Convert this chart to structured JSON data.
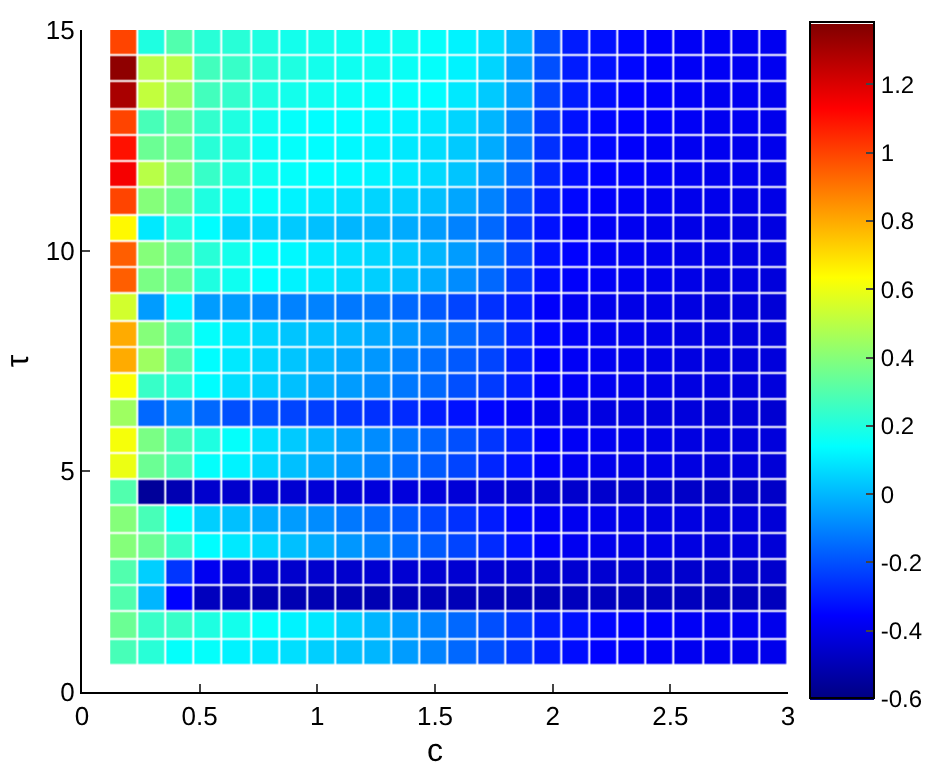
{
  "chart_data": {
    "type": "heatmap",
    "xlabel": "c",
    "ylabel": "τ",
    "x": [
      0.18,
      0.3,
      0.42,
      0.54,
      0.66,
      0.78,
      0.9,
      1.02,
      1.14,
      1.26,
      1.38,
      1.5,
      1.62,
      1.74,
      1.86,
      1.98,
      2.1,
      2.22,
      2.34,
      2.46,
      2.58,
      2.7,
      2.82,
      2.94
    ],
    "y": [
      14.7,
      14.1,
      13.5,
      12.9,
      12.3,
      11.7,
      11.1,
      10.5,
      9.9,
      9.3,
      8.7,
      8.1,
      7.5,
      6.9,
      6.3,
      5.7,
      5.1,
      4.5,
      3.9,
      3.3,
      2.7,
      2.1,
      1.5,
      0.9
    ],
    "xlim": [
      0,
      3
    ],
    "xticks": [
      0,
      0.5,
      1,
      1.5,
      2,
      2.5,
      3
    ],
    "ylim": [
      0,
      15
    ],
    "yticks": [
      0,
      5,
      10,
      15
    ],
    "clim": [
      -0.6,
      1.38
    ],
    "cticks": [
      -0.6,
      -0.4,
      -0.2,
      0,
      0.2,
      0.4,
      0.6,
      0.8,
      1,
      1.2
    ],
    "cells": [
      [
        1.0,
        0.2,
        0.3,
        0.22,
        0.22,
        0.2,
        0.18,
        0.18,
        0.17,
        0.16,
        0.17,
        0.15,
        0.12,
        0.08,
        0.0,
        -0.2,
        -0.3,
        -0.32,
        -0.34,
        -0.36,
        -0.37,
        -0.37,
        -0.38,
        -0.38
      ],
      [
        1.35,
        0.5,
        0.5,
        0.27,
        0.25,
        0.22,
        0.2,
        0.18,
        0.17,
        0.17,
        0.16,
        0.15,
        0.12,
        0.06,
        -0.05,
        -0.2,
        -0.3,
        -0.32,
        -0.34,
        -0.36,
        -0.37,
        -0.37,
        -0.38,
        -0.38
      ],
      [
        1.3,
        0.52,
        0.45,
        0.27,
        0.24,
        0.2,
        0.18,
        0.17,
        0.16,
        0.15,
        0.15,
        0.14,
        0.1,
        0.04,
        -0.05,
        -0.22,
        -0.3,
        -0.33,
        -0.35,
        -0.36,
        -0.37,
        -0.38,
        -0.38,
        -0.39
      ],
      [
        1.0,
        0.28,
        0.35,
        0.24,
        0.2,
        0.17,
        0.15,
        0.14,
        0.14,
        0.13,
        0.12,
        0.1,
        0.06,
        0.0,
        -0.1,
        -0.25,
        -0.32,
        -0.34,
        -0.35,
        -0.36,
        -0.37,
        -0.38,
        -0.38,
        -0.39
      ],
      [
        1.1,
        0.35,
        0.36,
        0.22,
        0.2,
        0.16,
        0.15,
        0.14,
        0.13,
        0.12,
        0.1,
        0.08,
        0.04,
        -0.02,
        -0.12,
        -0.26,
        -0.32,
        -0.34,
        -0.36,
        -0.37,
        -0.38,
        -0.38,
        -0.39,
        -0.39
      ],
      [
        1.15,
        0.5,
        0.4,
        0.25,
        0.2,
        0.17,
        0.15,
        0.14,
        0.13,
        0.12,
        0.1,
        0.07,
        0.03,
        -0.05,
        -0.15,
        -0.28,
        -0.33,
        -0.35,
        -0.36,
        -0.37,
        -0.38,
        -0.39,
        -0.39,
        -0.4
      ],
      [
        1.0,
        0.4,
        0.35,
        0.2,
        0.17,
        0.15,
        0.12,
        0.1,
        0.08,
        0.06,
        0.05,
        0.02,
        -0.03,
        -0.1,
        -0.2,
        -0.3,
        -0.34,
        -0.36,
        -0.37,
        -0.38,
        -0.39,
        -0.39,
        -0.4,
        -0.4
      ],
      [
        0.65,
        0.1,
        0.2,
        0.14,
        0.06,
        0.06,
        0.04,
        0.02,
        0.0,
        0.0,
        -0.02,
        -0.05,
        -0.1,
        -0.15,
        -0.25,
        -0.32,
        -0.36,
        -0.37,
        -0.38,
        -0.39,
        -0.4,
        -0.4,
        -0.41,
        -0.41
      ],
      [
        0.95,
        0.4,
        0.35,
        0.22,
        0.18,
        0.15,
        0.13,
        0.1,
        0.08,
        0.06,
        0.04,
        0.0,
        -0.05,
        -0.12,
        -0.22,
        -0.32,
        -0.35,
        -0.37,
        -0.38,
        -0.39,
        -0.4,
        -0.4,
        -0.41,
        -0.41
      ],
      [
        0.95,
        0.38,
        0.35,
        0.2,
        0.17,
        0.14,
        0.12,
        0.1,
        0.07,
        0.05,
        0.02,
        -0.02,
        -0.08,
        -0.15,
        -0.25,
        -0.33,
        -0.36,
        -0.37,
        -0.38,
        -0.39,
        -0.4,
        -0.41,
        -0.41,
        -0.42
      ],
      [
        0.55,
        -0.05,
        0.12,
        -0.05,
        -0.05,
        -0.08,
        -0.1,
        -0.1,
        -0.12,
        -0.12,
        -0.15,
        -0.18,
        -0.22,
        -0.26,
        -0.3,
        -0.36,
        -0.38,
        -0.39,
        -0.4,
        -0.4,
        -0.41,
        -0.42,
        -0.42,
        -0.43
      ],
      [
        0.8,
        0.4,
        0.3,
        0.15,
        0.1,
        0.06,
        0.03,
        0.02,
        0.0,
        -0.03,
        -0.06,
        -0.1,
        -0.15,
        -0.2,
        -0.28,
        -0.34,
        -0.37,
        -0.38,
        -0.39,
        -0.4,
        -0.41,
        -0.41,
        -0.42,
        -0.42
      ],
      [
        0.8,
        0.45,
        0.3,
        0.14,
        0.1,
        0.06,
        0.03,
        0.0,
        -0.03,
        -0.06,
        -0.1,
        -0.14,
        -0.18,
        -0.22,
        -0.3,
        -0.35,
        -0.37,
        -0.38,
        -0.39,
        -0.4,
        -0.41,
        -0.41,
        -0.42,
        -0.42
      ],
      [
        0.63,
        0.25,
        0.22,
        0.14,
        0.08,
        0.05,
        0.02,
        -0.02,
        -0.05,
        -0.08,
        -0.12,
        -0.15,
        -0.2,
        -0.24,
        -0.3,
        -0.35,
        -0.37,
        -0.38,
        -0.39,
        -0.4,
        -0.41,
        -0.41,
        -0.42,
        -0.42
      ],
      [
        0.45,
        -0.15,
        -0.1,
        -0.15,
        -0.2,
        -0.2,
        -0.22,
        -0.23,
        -0.25,
        -0.26,
        -0.27,
        -0.3,
        -0.32,
        -0.34,
        -0.37,
        -0.39,
        -0.4,
        -0.41,
        -0.41,
        -0.42,
        -0.42,
        -0.43,
        -0.43,
        -0.44
      ],
      [
        0.62,
        0.38,
        0.28,
        0.2,
        0.15,
        0.08,
        0.04,
        0.0,
        -0.04,
        -0.08,
        -0.12,
        -0.16,
        -0.2,
        -0.25,
        -0.3,
        -0.35,
        -0.37,
        -0.38,
        -0.39,
        -0.4,
        -0.41,
        -0.41,
        -0.42,
        -0.42
      ],
      [
        0.6,
        0.35,
        0.28,
        0.15,
        0.12,
        0.06,
        0.02,
        -0.02,
        -0.06,
        -0.1,
        -0.14,
        -0.18,
        -0.22,
        -0.28,
        -0.32,
        -0.36,
        -0.38,
        -0.39,
        -0.4,
        -0.4,
        -0.41,
        -0.42,
        -0.42,
        -0.43
      ],
      [
        0.3,
        -0.55,
        -0.5,
        -0.45,
        -0.45,
        -0.44,
        -0.44,
        -0.43,
        -0.43,
        -0.42,
        -0.42,
        -0.42,
        -0.43,
        -0.43,
        -0.44,
        -0.44,
        -0.45,
        -0.45,
        -0.45,
        -0.45,
        -0.46,
        -0.46,
        -0.46,
        -0.46
      ],
      [
        0.4,
        0.28,
        0.15,
        0.05,
        0.02,
        -0.02,
        -0.05,
        -0.08,
        -0.12,
        -0.15,
        -0.18,
        -0.22,
        -0.26,
        -0.3,
        -0.34,
        -0.37,
        -0.38,
        -0.39,
        -0.4,
        -0.41,
        -0.41,
        -0.42,
        -0.42,
        -0.43
      ],
      [
        0.4,
        0.35,
        0.25,
        0.14,
        0.1,
        0.06,
        0.02,
        -0.02,
        -0.06,
        -0.1,
        -0.14,
        -0.18,
        -0.22,
        -0.27,
        -0.32,
        -0.36,
        -0.38,
        -0.39,
        -0.4,
        -0.4,
        -0.41,
        -0.42,
        -0.42,
        -0.43
      ],
      [
        0.3,
        0.05,
        -0.25,
        -0.38,
        -0.42,
        -0.44,
        -0.45,
        -0.45,
        -0.45,
        -0.44,
        -0.44,
        -0.44,
        -0.44,
        -0.44,
        -0.44,
        -0.44,
        -0.44,
        -0.44,
        -0.44,
        -0.45,
        -0.45,
        -0.45,
        -0.45,
        -0.45
      ],
      [
        0.3,
        0.0,
        -0.35,
        -0.48,
        -0.48,
        -0.5,
        -0.5,
        -0.5,
        -0.5,
        -0.5,
        -0.49,
        -0.49,
        -0.49,
        -0.49,
        -0.49,
        -0.49,
        -0.48,
        -0.48,
        -0.48,
        -0.48,
        -0.48,
        -0.48,
        -0.48,
        -0.48
      ],
      [
        0.35,
        0.25,
        0.25,
        0.2,
        0.18,
        0.15,
        0.12,
        0.1,
        0.05,
        0.0,
        -0.05,
        -0.1,
        -0.15,
        -0.2,
        -0.25,
        -0.3,
        -0.32,
        -0.34,
        -0.35,
        -0.36,
        -0.37,
        -0.38,
        -0.38,
        -0.39
      ],
      [
        0.28,
        0.22,
        0.15,
        0.15,
        0.12,
        0.1,
        0.08,
        0.05,
        0.02,
        0.0,
        -0.05,
        -0.1,
        -0.15,
        -0.2,
        -0.25,
        -0.3,
        -0.33,
        -0.35,
        -0.36,
        -0.37,
        -0.38,
        -0.38,
        -0.39,
        -0.39
      ]
    ]
  }
}
